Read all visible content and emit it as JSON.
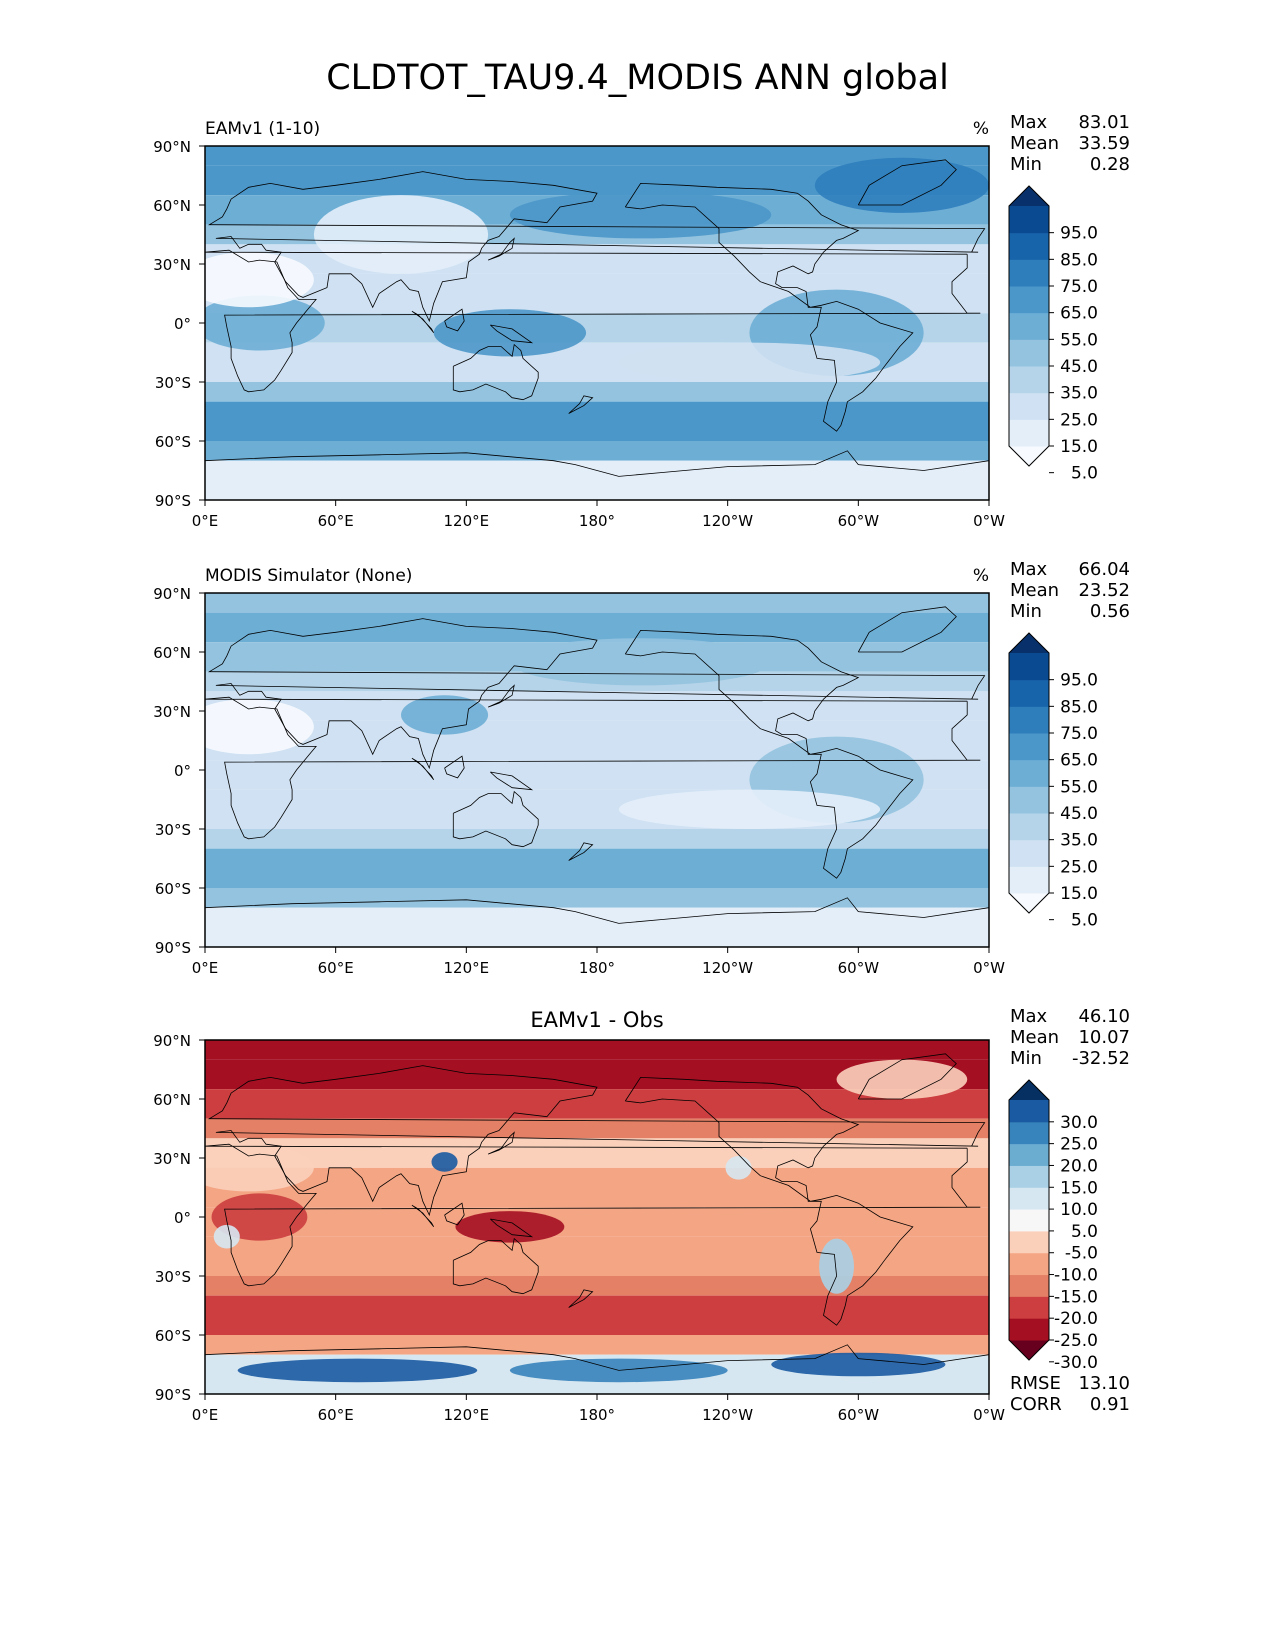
{
  "title": "CLDTOT_TAU9.4_MODIS ANN global",
  "lat_ticks": [
    "90°N",
    "60°N",
    "30°N",
    "0°",
    "30°S",
    "60°S",
    "90°S"
  ],
  "lon_ticks": [
    "0°E",
    "60°E",
    "120°E",
    "180°",
    "120°W",
    "60°W",
    "0°W"
  ],
  "panels": [
    {
      "id": "test",
      "subtitle_left": "EAMv1 (1-10)",
      "subtitle_center": "",
      "units": "%",
      "stats": [
        {
          "label": "Max",
          "value": "83.01"
        },
        {
          "label": "Mean",
          "value": "33.59"
        },
        {
          "label": "Min",
          "value": "0.28"
        }
      ],
      "colorbar_ticks": [
        "95.0",
        "85.0",
        "75.0",
        "65.0",
        "55.0",
        "45.0",
        "35.0",
        "25.0",
        "15.0",
        "5.0"
      ],
      "colorbar_colors": [
        "#f7fbff",
        "#e3eef9",
        "#cfe1f2",
        "#b5d4e9",
        "#93c3df",
        "#6daed5",
        "#4b97c9",
        "#2f7ebc",
        "#1864aa",
        "#0a4a90",
        "#08306b"
      ],
      "colormap": "Blues",
      "bottom_stats": []
    },
    {
      "id": "reference",
      "subtitle_left": "MODIS Simulator (None)",
      "subtitle_center": "",
      "units": "%",
      "stats": [
        {
          "label": "Max",
          "value": "66.04"
        },
        {
          "label": "Mean",
          "value": "23.52"
        },
        {
          "label": "Min",
          "value": "0.56"
        }
      ],
      "colorbar_ticks": [
        "95.0",
        "85.0",
        "75.0",
        "65.0",
        "55.0",
        "45.0",
        "35.0",
        "25.0",
        "15.0",
        "5.0"
      ],
      "colorbar_colors": [
        "#f7fbff",
        "#e3eef9",
        "#cfe1f2",
        "#b5d4e9",
        "#93c3df",
        "#6daed5",
        "#4b97c9",
        "#2f7ebc",
        "#1864aa",
        "#0a4a90",
        "#08306b"
      ],
      "colormap": "Blues",
      "bottom_stats": []
    },
    {
      "id": "difference",
      "subtitle_left": "",
      "subtitle_center": "EAMv1 - Obs",
      "units": "",
      "stats": [
        {
          "label": "Max",
          "value": "46.10"
        },
        {
          "label": "Mean",
          "value": "10.07"
        },
        {
          "label": "Min",
          "value": "-32.52"
        }
      ],
      "colorbar_ticks": [
        "30.0",
        "25.0",
        "20.0",
        "15.0",
        "10.0",
        "5.0",
        "-5.0",
        "-10.0",
        "-15.0",
        "-20.0",
        "-25.0",
        "-30.0"
      ],
      "colorbar_colors": [
        "#67001f",
        "#a50f22",
        "#cc3e3f",
        "#e48066",
        "#f4a583",
        "#fbd0bb",
        "#f7f7f7",
        "#d6e7f1",
        "#a9d0e5",
        "#6bacd1",
        "#3783bb",
        "#1a5aa2",
        "#053061"
      ],
      "colormap": "RdBu",
      "bottom_stats": [
        {
          "label": "RMSE",
          "value": "13.10"
        },
        {
          "label": "CORR",
          "value": "0.91"
        }
      ]
    }
  ]
}
